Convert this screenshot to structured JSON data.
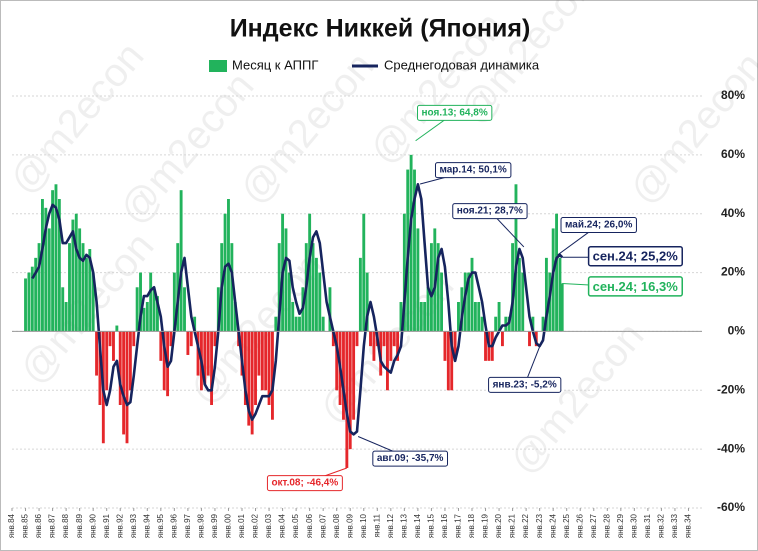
{
  "chart_data": {
    "type": "bar-line",
    "title": "Индекс Никкей (Япония)",
    "watermark": "@m2econ",
    "xlim": [
      1984,
      2035
    ],
    "ylim": [
      -60,
      80
    ],
    "yticks": [
      {
        "value": 80,
        "label": "80%"
      },
      {
        "value": 60,
        "label": "60%"
      },
      {
        "value": 40,
        "label": "40%"
      },
      {
        "value": 20,
        "label": "20%"
      },
      {
        "value": 0,
        "label": "0%"
      },
      {
        "value": -20,
        "label": "-20%"
      },
      {
        "value": -40,
        "label": "-40%"
      },
      {
        "value": -60,
        "label": "-60%"
      }
    ],
    "xticks": [
      {
        "value": 1984,
        "label": "янв.84"
      },
      {
        "value": 1985,
        "label": "янв.85"
      },
      {
        "value": 1986,
        "label": "янв.86"
      },
      {
        "value": 1987,
        "label": "янв.87"
      },
      {
        "value": 1988,
        "label": "янв.88"
      },
      {
        "value": 1989,
        "label": "янв.89"
      },
      {
        "value": 1990,
        "label": "янв.90"
      },
      {
        "value": 1991,
        "label": "янв.91"
      },
      {
        "value": 1992,
        "label": "янв.92"
      },
      {
        "value": 1993,
        "label": "янв.93"
      },
      {
        "value": 1994,
        "label": "янв.94"
      },
      {
        "value": 1995,
        "label": "янв.95"
      },
      {
        "value": 1996,
        "label": "янв.96"
      },
      {
        "value": 1997,
        "label": "янв.97"
      },
      {
        "value": 1998,
        "label": "янв.98"
      },
      {
        "value": 1999,
        "label": "янв.99"
      },
      {
        "value": 2000,
        "label": "янв.00"
      },
      {
        "value": 2001,
        "label": "янв.01"
      },
      {
        "value": 2002,
        "label": "янв.02"
      },
      {
        "value": 2003,
        "label": "янв.03"
      },
      {
        "value": 2004,
        "label": "янв.04"
      },
      {
        "value": 2005,
        "label": "янв.05"
      },
      {
        "value": 2006,
        "label": "янв.06"
      },
      {
        "value": 2007,
        "label": "янв.07"
      },
      {
        "value": 2008,
        "label": "янв.08"
      },
      {
        "value": 2009,
        "label": "янв.09"
      },
      {
        "value": 2010,
        "label": "янв.10"
      },
      {
        "value": 2011,
        "label": "янв.11"
      },
      {
        "value": 2012,
        "label": "янв.12"
      },
      {
        "value": 2013,
        "label": "янв.13"
      },
      {
        "value": 2014,
        "label": "янв.14"
      },
      {
        "value": 2015,
        "label": "янв.15"
      },
      {
        "value": 2016,
        "label": "янв.16"
      },
      {
        "value": 2017,
        "label": "янв.17"
      },
      {
        "value": 2018,
        "label": "янв.18"
      },
      {
        "value": 2019,
        "label": "янв.19"
      },
      {
        "value": 2020,
        "label": "янв.20"
      },
      {
        "value": 2021,
        "label": "янв.21"
      },
      {
        "value": 2022,
        "label": "янв.22"
      },
      {
        "value": 2023,
        "label": "янв.23"
      },
      {
        "value": 2024,
        "label": "янв.24"
      },
      {
        "value": 2025,
        "label": "янв.25"
      },
      {
        "value": 2026,
        "label": "янв.26"
      },
      {
        "value": 2027,
        "label": "янв.27"
      },
      {
        "value": 2028,
        "label": "янв.28"
      },
      {
        "value": 2029,
        "label": "янв.29"
      },
      {
        "value": 2030,
        "label": "янв.30"
      },
      {
        "value": 2031,
        "label": "янв.31"
      },
      {
        "value": 2032,
        "label": "янв.32"
      },
      {
        "value": 2033,
        "label": "янв.33"
      },
      {
        "value": 2034,
        "label": "янв.34"
      }
    ],
    "grid": true,
    "legend": "top",
    "x": [
      1985,
      1985.25,
      1985.5,
      1985.75,
      1986,
      1986.25,
      1986.5,
      1986.75,
      1987,
      1987.25,
      1987.5,
      1987.75,
      1988,
      1988.25,
      1988.5,
      1988.75,
      1989,
      1989.25,
      1989.5,
      1989.75,
      1990,
      1990.25,
      1990.5,
      1990.75,
      1991,
      1991.25,
      1991.5,
      1991.75,
      1992,
      1992.25,
      1992.5,
      1992.75,
      1993,
      1993.25,
      1993.5,
      1993.75,
      1994,
      1994.25,
      1994.5,
      1994.75,
      1995,
      1995.25,
      1995.5,
      1995.75,
      1996,
      1996.25,
      1996.5,
      1996.75,
      1997,
      1997.25,
      1997.5,
      1997.75,
      1998,
      1998.25,
      1998.5,
      1998.75,
      1999,
      1999.25,
      1999.5,
      1999.75,
      2000,
      2000.25,
      2000.5,
      2000.75,
      2001,
      2001.25,
      2001.5,
      2001.75,
      2002,
      2002.25,
      2002.5,
      2002.75,
      2003,
      2003.25,
      2003.5,
      2003.75,
      2004,
      2004.25,
      2004.5,
      2004.75,
      2005,
      2005.25,
      2005.5,
      2005.75,
      2006,
      2006.25,
      2006.5,
      2006.75,
      2007,
      2007.25,
      2007.5,
      2007.75,
      2008,
      2008.25,
      2008.5,
      2008.75,
      2009,
      2009.25,
      2009.5,
      2009.75,
      2010,
      2010.25,
      2010.5,
      2010.75,
      2011,
      2011.25,
      2011.5,
      2011.75,
      2012,
      2012.25,
      2012.5,
      2012.75,
      2013,
      2013.25,
      2013.5,
      2013.75,
      2014,
      2014.25,
      2014.5,
      2014.75,
      2015,
      2015.25,
      2015.5,
      2015.75,
      2016,
      2016.25,
      2016.5,
      2016.75,
      2017,
      2017.25,
      2017.5,
      2017.75,
      2018,
      2018.25,
      2018.5,
      2018.75,
      2019,
      2019.25,
      2019.5,
      2019.75,
      2020,
      2020.25,
      2020.5,
      2020.75,
      2021,
      2021.25,
      2021.5,
      2021.75,
      2022,
      2022.25,
      2022.5,
      2022.75,
      2023,
      2023.25,
      2023.5,
      2023.75,
      2024,
      2024.25,
      2024.5,
      2024.667
    ],
    "series": [
      {
        "name": "Месяц к АППГ",
        "type": "bar",
        "color": "#22b35c",
        "negative_color": "#e5272b",
        "values": [
          18,
          20,
          22,
          25,
          30,
          45,
          42,
          35,
          48,
          50,
          45,
          15,
          10,
          30,
          38,
          40,
          35,
          30,
          25,
          28,
          20,
          -15,
          -25,
          -38,
          -20,
          -5,
          -10,
          2,
          -25,
          -35,
          -38,
          -20,
          -5,
          15,
          20,
          8,
          10,
          20,
          15,
          12,
          -10,
          -20,
          -22,
          -5,
          20,
          30,
          48,
          15,
          -8,
          -5,
          5,
          -15,
          -20,
          -18,
          -15,
          -25,
          -5,
          15,
          30,
          40,
          45,
          30,
          10,
          -5,
          -15,
          -25,
          -32,
          -35,
          -25,
          -15,
          -20,
          -20,
          -25,
          -30,
          5,
          30,
          40,
          35,
          20,
          10,
          5,
          5,
          15,
          30,
          40,
          30,
          25,
          20,
          5,
          0,
          15,
          -5,
          -20,
          -25,
          -30,
          -46.4,
          -40,
          -30,
          -5,
          25,
          40,
          20,
          -5,
          -10,
          -5,
          -15,
          -5,
          -20,
          -10,
          -5,
          -10,
          10,
          40,
          55,
          60,
          55,
          35,
          10,
          10,
          15,
          30,
          35,
          30,
          20,
          -10,
          -20,
          -20,
          -10,
          10,
          15,
          20,
          20,
          25,
          10,
          10,
          5,
          -10,
          -10,
          -10,
          5,
          10,
          -5,
          5,
          5,
          30,
          50,
          25,
          20,
          0,
          -5,
          5,
          -5,
          0,
          5,
          25,
          20,
          35,
          40,
          25,
          16.3
        ]
      },
      {
        "name": "Среднегодовая динамика",
        "type": "line",
        "color": "#16245e",
        "values": [
          null,
          null,
          18,
          20,
          22,
          28,
          35,
          40,
          43,
          42,
          38,
          30,
          30,
          32,
          34,
          28,
          25,
          24,
          26,
          25,
          20,
          10,
          -5,
          -20,
          -25,
          -20,
          -12,
          -10,
          -18,
          -22,
          -25,
          -24,
          -15,
          -5,
          5,
          12,
          12,
          14,
          15,
          10,
          5,
          -5,
          -12,
          -10,
          0,
          10,
          20,
          25,
          15,
          5,
          0,
          -5,
          -10,
          -18,
          -20,
          -20,
          -12,
          0,
          15,
          22,
          23,
          20,
          10,
          0,
          -10,
          -20,
          -27,
          -30,
          -28,
          -25,
          -22,
          -22,
          -22,
          -20,
          -10,
          5,
          20,
          25,
          24,
          15,
          10,
          6,
          8,
          15,
          25,
          32,
          34,
          30,
          20,
          10,
          5,
          0,
          -5,
          -12,
          -20,
          -28,
          -34,
          -35,
          -34,
          -20,
          -5,
          5,
          10,
          5,
          -2,
          -10,
          -12,
          -13,
          -14,
          -10,
          -8,
          -5,
          10,
          25,
          38,
          45,
          50,
          45,
          30,
          15,
          12,
          15,
          25,
          28,
          22,
          10,
          -5,
          -10,
          -5,
          5,
          12,
          18,
          20,
          20,
          15,
          10,
          2,
          -5,
          -5,
          -2,
          0,
          2,
          2,
          3,
          10,
          22,
          28,
          25,
          15,
          5,
          0,
          -4,
          -5,
          -3,
          5,
          12,
          20,
          25,
          26,
          25.2
        ]
      }
    ],
    "annotations": [
      {
        "label": "ноя.13; 64,8%",
        "x": 2013.833,
        "y": 64.8,
        "color": "#22b35c"
      },
      {
        "label": "мар.14; 50,1%",
        "x": 2014.167,
        "y": 50.1,
        "color": "#16245e"
      },
      {
        "label": "ноя.21; 28,7%",
        "x": 2021.833,
        "y": 28.7,
        "color": "#16245e"
      },
      {
        "label": "янв.23; -5,2%",
        "x": 2023.0,
        "y": -5.2,
        "color": "#16245e"
      },
      {
        "label": "май.24; 26,0%",
        "x": 2024.333,
        "y": 26.0,
        "color": "#16245e"
      },
      {
        "label": "сен.24; 25,2%",
        "x": 2024.667,
        "y": 25.2,
        "color": "#16245e"
      },
      {
        "label": "сен.24; 16,3%",
        "x": 2024.667,
        "y": 16.3,
        "color": "#22b35c"
      },
      {
        "label": "окт.08; -46,4%",
        "x": 2008.75,
        "y": -46.4,
        "color": "#e5272b"
      },
      {
        "label": "авг.09; -35,7%",
        "x": 2009.583,
        "y": -35.7,
        "color": "#16245e"
      }
    ]
  }
}
